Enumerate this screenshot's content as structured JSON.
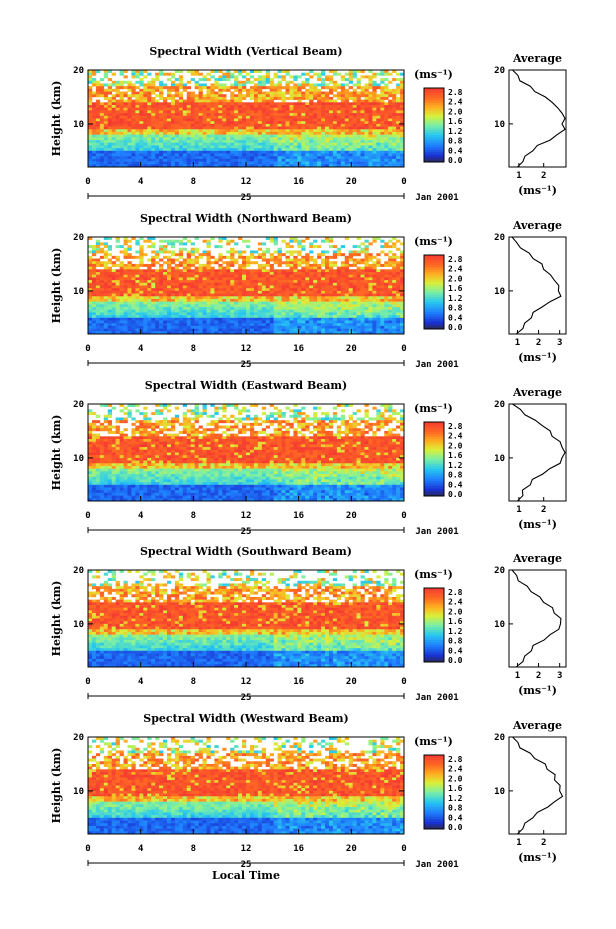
{
  "figure": {
    "xlabel": "Local Time",
    "date_label": "Jan 2001",
    "day_label": "25",
    "ylabel": "Height (km)",
    "unit_label": "(ms⁻¹)",
    "avg_title": "Average",
    "avg_unit": "(ms⁻¹)"
  },
  "chart_data": [
    {
      "type": "heatmap",
      "title": "Spectral Width (Vertical Beam)",
      "xlabel": "",
      "ylabel": "Height (km)",
      "x_ticks": [
        "0",
        "4",
        "8",
        "12",
        "16",
        "20",
        "0"
      ],
      "y_ticks": [
        "20",
        "10"
      ],
      "xlim": [
        0,
        24
      ],
      "ylim": [
        2,
        20
      ],
      "colorbar": {
        "label": "(ms⁻¹)",
        "ticks": [
          "2.8",
          "2.4",
          "2.0",
          "1.6",
          "1.2",
          "0.8",
          "0.4",
          "0.0"
        ]
      },
      "average_profile": {
        "title": "Average",
        "xlabel": "(ms⁻¹)",
        "x_ticks": [
          "1",
          "2"
        ],
        "y_ticks": [
          "20",
          "10"
        ],
        "xlim": [
          0.6,
          2.9
        ],
        "heights": [
          2,
          3,
          4,
          5,
          6,
          7,
          8,
          9,
          10,
          11,
          12,
          13,
          14,
          15,
          16,
          17,
          18,
          19,
          20
        ],
        "values": [
          1.0,
          1.1,
          1.3,
          1.5,
          1.8,
          2.2,
          2.6,
          2.8,
          2.8,
          2.8,
          2.8,
          2.5,
          2.4,
          2.0,
          1.7,
          1.4,
          1.1,
          0.9,
          0.8
        ]
      }
    },
    {
      "type": "heatmap",
      "title": "Spectral Width (Northward Beam)",
      "xlabel": "",
      "ylabel": "Height (km)",
      "x_ticks": [
        "0",
        "4",
        "8",
        "12",
        "16",
        "20",
        "0"
      ],
      "y_ticks": [
        "20",
        "10"
      ],
      "xlim": [
        0,
        24
      ],
      "ylim": [
        2,
        20
      ],
      "colorbar": {
        "label": "(ms⁻¹)",
        "ticks": [
          "2.8",
          "2.4",
          "2.0",
          "1.6",
          "1.2",
          "0.8",
          "0.4",
          "0.0"
        ]
      },
      "average_profile": {
        "title": "Average",
        "xlabel": "(ms⁻¹)",
        "x_ticks": [
          "1",
          "2",
          "3"
        ],
        "y_ticks": [
          "20",
          "10"
        ],
        "xlim": [
          0.6,
          3.3
        ],
        "heights": [
          2,
          3,
          4,
          5,
          6,
          7,
          8,
          9,
          10,
          11,
          12,
          13,
          14,
          15,
          16,
          17,
          18,
          19,
          20
        ],
        "values": [
          1.0,
          1.2,
          1.4,
          1.6,
          1.8,
          2.1,
          2.6,
          3.0,
          3.0,
          2.9,
          2.8,
          2.5,
          2.3,
          2.1,
          1.8,
          1.5,
          1.2,
          0.9,
          0.8
        ]
      }
    },
    {
      "type": "heatmap",
      "title": "Spectral Width (Eastward Beam)",
      "xlabel": "",
      "ylabel": "Height (km)",
      "x_ticks": [
        "0",
        "4",
        "8",
        "12",
        "16",
        "20",
        "0"
      ],
      "y_ticks": [
        "20",
        "10"
      ],
      "xlim": [
        0,
        24
      ],
      "ylim": [
        2,
        20
      ],
      "colorbar": {
        "label": "(ms⁻¹)",
        "ticks": [
          "2.8",
          "2.4",
          "2.0",
          "1.6",
          "1.2",
          "0.8",
          "0.4",
          "0.0"
        ]
      },
      "average_profile": {
        "title": "Average",
        "xlabel": "(ms⁻¹)",
        "x_ticks": [
          "1",
          "2"
        ],
        "y_ticks": [
          "20",
          "10"
        ],
        "xlim": [
          0.6,
          2.9
        ],
        "heights": [
          2,
          3,
          4,
          5,
          6,
          7,
          8,
          9,
          10,
          11,
          12,
          13,
          14,
          15,
          16,
          17,
          18,
          19,
          20
        ],
        "values": [
          1.0,
          1.1,
          1.2,
          1.4,
          1.6,
          1.9,
          2.3,
          2.6,
          2.8,
          2.8,
          2.8,
          2.6,
          2.4,
          2.2,
          2.0,
          1.6,
          1.3,
          1.0,
          0.8
        ]
      }
    },
    {
      "type": "heatmap",
      "title": "Spectral Width (Southward Beam)",
      "xlabel": "",
      "ylabel": "Height (km)",
      "x_ticks": [
        "0",
        "4",
        "8",
        "12",
        "16",
        "20",
        "0"
      ],
      "y_ticks": [
        "20",
        "10"
      ],
      "xlim": [
        0,
        24
      ],
      "ylim": [
        2,
        20
      ],
      "colorbar": {
        "label": "(ms⁻¹)",
        "ticks": [
          "2.8",
          "2.4",
          "2.0",
          "1.6",
          "1.2",
          "0.8",
          "0.4",
          "0.0"
        ]
      },
      "average_profile": {
        "title": "Average",
        "xlabel": "(ms⁻¹)",
        "x_ticks": [
          "1",
          "2",
          "3"
        ],
        "y_ticks": [
          "20",
          "10"
        ],
        "xlim": [
          0.6,
          3.3
        ],
        "heights": [
          2,
          3,
          4,
          5,
          6,
          7,
          8,
          9,
          10,
          11,
          12,
          13,
          14,
          15,
          16,
          17,
          18,
          19,
          20
        ],
        "values": [
          1.0,
          1.2,
          1.4,
          1.6,
          1.8,
          2.2,
          2.6,
          2.9,
          3.1,
          3.0,
          2.8,
          2.6,
          2.3,
          2.0,
          1.7,
          1.4,
          1.1,
          0.9,
          0.8
        ]
      }
    },
    {
      "type": "heatmap",
      "title": "Spectral Width (Westward Beam)",
      "xlabel": "Local Time",
      "ylabel": "Height (km)",
      "x_ticks": [
        "0",
        "4",
        "8",
        "12",
        "16",
        "20",
        "0"
      ],
      "y_ticks": [
        "20",
        "10"
      ],
      "xlim": [
        0,
        24
      ],
      "ylim": [
        2,
        20
      ],
      "colorbar": {
        "label": "(ms⁻¹)",
        "ticks": [
          "2.8",
          "2.4",
          "2.0",
          "1.6",
          "1.2",
          "0.8",
          "0.4",
          "0.0"
        ]
      },
      "average_profile": {
        "title": "Average",
        "xlabel": "(ms⁻¹)",
        "x_ticks": [
          "1",
          "2"
        ],
        "y_ticks": [
          "20",
          "10"
        ],
        "xlim": [
          0.6,
          2.9
        ],
        "heights": [
          2,
          3,
          4,
          5,
          6,
          7,
          8,
          9,
          10,
          11,
          12,
          13,
          14,
          15,
          16,
          17,
          18,
          19,
          20
        ],
        "values": [
          1.0,
          1.1,
          1.3,
          1.5,
          1.8,
          2.1,
          2.5,
          2.7,
          2.7,
          2.6,
          2.5,
          2.4,
          2.2,
          2.0,
          1.7,
          1.4,
          1.1,
          0.9,
          0.8
        ]
      }
    }
  ]
}
